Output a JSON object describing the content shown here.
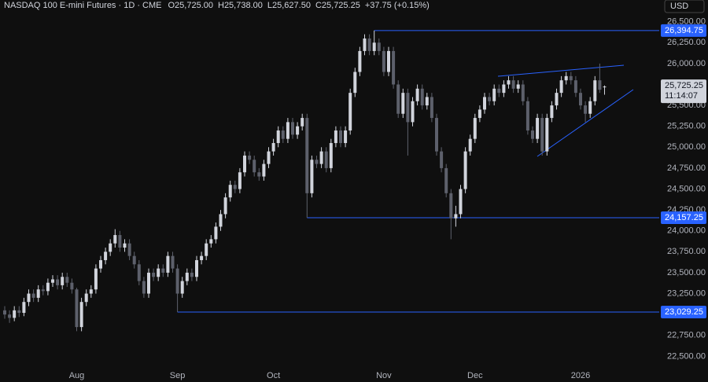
{
  "chart_data": {
    "type": "candlestick",
    "title": "NASDAQ 100 E-mini Futures · 1D · CME",
    "readout": [
      "O25,725.00",
      "H25,738.00",
      "L25,627.50",
      "C25,725.25",
      "+37.75 (+0.15%)"
    ],
    "currency": "USD",
    "up_color": "#d1d4dc",
    "down_color": "#5d606b",
    "level_color": "#2962ff",
    "categories": [
      null,
      null,
      null,
      null,
      null,
      null,
      null,
      null,
      null,
      null,
      null,
      null,
      null,
      null,
      null,
      "Aug",
      null,
      null,
      null,
      null,
      null,
      null,
      null,
      null,
      null,
      null,
      null,
      null,
      null,
      null,
      null,
      null,
      null,
      null,
      null,
      null,
      "Sep",
      null,
      null,
      null,
      null,
      null,
      null,
      null,
      null,
      null,
      null,
      null,
      null,
      null,
      null,
      null,
      null,
      null,
      null,
      null,
      "Oct",
      null,
      null,
      null,
      null,
      null,
      null,
      null,
      null,
      null,
      null,
      null,
      null,
      null,
      null,
      null,
      null,
      null,
      null,
      null,
      null,
      null,
      null,
      "Nov",
      null,
      null,
      null,
      null,
      null,
      null,
      null,
      null,
      null,
      null,
      null,
      null,
      null,
      null,
      null,
      null,
      null,
      null,
      "Dec",
      null,
      null,
      null,
      null,
      null,
      null,
      null,
      null,
      null,
      null,
      null,
      null,
      null,
      null,
      null,
      null,
      null,
      null,
      null,
      null,
      null,
      "2026",
      null,
      null,
      null,
      null,
      null
    ],
    "open": [
      23050,
      23000,
      22960,
      23050,
      23020,
      23150,
      23250,
      23200,
      23300,
      23280,
      23380,
      23420,
      23350,
      23450,
      23380,
      23300,
      22850,
      23150,
      23250,
      23300,
      23550,
      23650,
      23750,
      23850,
      23950,
      23800,
      23850,
      23700,
      23600,
      23400,
      23250,
      23500,
      23450,
      23550,
      23500,
      23700,
      23550,
      23250,
      23400,
      23500,
      23450,
      23650,
      23700,
      23850,
      23900,
      24050,
      24200,
      24400,
      24550,
      24500,
      24700,
      24900,
      24850,
      24700,
      24650,
      24800,
      24950,
      25050,
      25200,
      25100,
      25300,
      25150,
      25250,
      25350,
      24450,
      24850,
      24800,
      24950,
      24750,
      25050,
      25200,
      25050,
      25200,
      25650,
      25900,
      26150,
      26300,
      26150,
      26250,
      26150,
      25900,
      26150,
      25750,
      25400,
      25650,
      25300,
      25550,
      25700,
      25500,
      25600,
      25350,
      24950,
      24750,
      24450,
      24150,
      24200,
      24500,
      24950,
      25100,
      25350,
      25450,
      25600,
      25550,
      25700,
      25650,
      25750,
      25800,
      25700,
      25750,
      25550,
      25200,
      25100,
      25350,
      24950,
      25350,
      25500,
      25650,
      25800,
      25850,
      25800,
      25650,
      25500,
      25400,
      25550,
      25800,
      25725
    ],
    "high": [
      23100,
      23050,
      23100,
      23100,
      23200,
      23300,
      23300,
      23350,
      23350,
      23430,
      23470,
      23470,
      23500,
      23500,
      23430,
      23320,
      23200,
      23300,
      23350,
      23600,
      23700,
      23800,
      23900,
      24020,
      24000,
      23900,
      23900,
      23750,
      23650,
      23450,
      23550,
      23550,
      23600,
      23600,
      23750,
      23750,
      23600,
      23450,
      23550,
      23550,
      23700,
      23750,
      23900,
      23950,
      24100,
      24250,
      24450,
      24600,
      24600,
      24750,
      24950,
      24950,
      24900,
      24750,
      24850,
      25000,
      25100,
      25250,
      25250,
      25350,
      25350,
      25300,
      25400,
      25400,
      24900,
      24900,
      25000,
      25000,
      25100,
      25250,
      25250,
      25250,
      25700,
      25950,
      26200,
      26350,
      26350,
      26394.75,
      26300,
      26200,
      26200,
      26200,
      25800,
      25700,
      25700,
      25600,
      25750,
      25750,
      25650,
      25650,
      25400,
      25000,
      24800,
      24500,
      24300,
      24550,
      25000,
      25150,
      25400,
      25500,
      25650,
      25650,
      25750,
      25750,
      25800,
      25850,
      25850,
      25800,
      25800,
      25600,
      25250,
      25400,
      25400,
      25400,
      25550,
      25700,
      25850,
      25900,
      25900,
      25850,
      25700,
      25550,
      25600,
      25850,
      26000,
      25738
    ],
    "low": [
      22950,
      22900,
      22920,
      22970,
      22980,
      23100,
      23150,
      23150,
      23230,
      23230,
      23330,
      23300,
      23300,
      23330,
      23250,
      22800,
      22800,
      23100,
      23200,
      23250,
      23500,
      23600,
      23700,
      23800,
      23750,
      23750,
      23650,
      23550,
      23350,
      23200,
      23200,
      23400,
      23400,
      23450,
      23450,
      23500,
      23029.25,
      23200,
      23350,
      23400,
      23400,
      23600,
      23650,
      23800,
      23850,
      24000,
      24150,
      24350,
      24450,
      24450,
      24650,
      24800,
      24650,
      24600,
      24600,
      24750,
      24900,
      25000,
      25050,
      25050,
      25100,
      25100,
      25200,
      24157.25,
      24400,
      24750,
      24750,
      24700,
      24700,
      25000,
      25000,
      25000,
      25150,
      25600,
      25850,
      26100,
      26100,
      26100,
      26100,
      25850,
      25850,
      25700,
      25350,
      25350,
      24900,
      25250,
      25500,
      25450,
      25450,
      25300,
      24900,
      24700,
      24400,
      23900,
      24050,
      24150,
      24450,
      24900,
      25050,
      25300,
      25400,
      25500,
      25500,
      25600,
      25600,
      25700,
      25650,
      25650,
      25500,
      25150,
      25050,
      25050,
      24900,
      24900,
      25300,
      25450,
      25600,
      25750,
      25750,
      25600,
      25450,
      25300,
      25350,
      25500,
      25650,
      25627.5
    ],
    "close": [
      23000,
      22960,
      23050,
      23020,
      23150,
      23250,
      23200,
      23300,
      23280,
      23380,
      23420,
      23350,
      23450,
      23380,
      23300,
      22850,
      23150,
      23250,
      23300,
      23550,
      23650,
      23750,
      23850,
      23950,
      23800,
      23850,
      23700,
      23600,
      23400,
      23250,
      23500,
      23450,
      23550,
      23500,
      23700,
      23550,
      23250,
      23400,
      23500,
      23450,
      23650,
      23700,
      23850,
      23900,
      24050,
      24200,
      24400,
      24550,
      24500,
      24700,
      24900,
      24850,
      24700,
      24650,
      24800,
      24950,
      25050,
      25200,
      25100,
      25300,
      25150,
      25250,
      25350,
      24450,
      24850,
      24800,
      24950,
      24750,
      25050,
      25200,
      25050,
      25200,
      25650,
      25900,
      26150,
      26300,
      26150,
      26250,
      26150,
      25900,
      26150,
      25750,
      25400,
      25650,
      25300,
      25550,
      25700,
      25500,
      25600,
      25350,
      24950,
      24750,
      24450,
      24150,
      24200,
      24500,
      24950,
      25100,
      25350,
      25450,
      25600,
      25550,
      25700,
      25650,
      25750,
      25800,
      25700,
      25750,
      25550,
      25200,
      25100,
      25350,
      24950,
      25350,
      25500,
      25650,
      25800,
      25850,
      25800,
      25650,
      25500,
      25400,
      25550,
      25800,
      25687.5,
      25725.25
    ],
    "ylim": [
      22400,
      26760
    ],
    "yticks": [
      {
        "value": 22500,
        "label": "22,500.00"
      },
      {
        "value": 22750,
        "label": "22,750.00"
      },
      {
        "value": 23250,
        "label": "23,250.00"
      },
      {
        "value": 23500,
        "label": "23,500.00"
      },
      {
        "value": 23750,
        "label": "23,750.00"
      },
      {
        "value": 24000,
        "label": "24,000.00"
      },
      {
        "value": 24250,
        "label": "24,250.00"
      },
      {
        "value": 24500,
        "label": "24,500.00"
      },
      {
        "value": 24750,
        "label": "24,750.00"
      },
      {
        "value": 25000,
        "label": "25,000.00"
      },
      {
        "value": 25250,
        "label": "25,250.00"
      },
      {
        "value": 25500,
        "label": "25,500.00"
      },
      {
        "value": 26000,
        "label": "26,000.00"
      },
      {
        "value": 26250,
        "label": "26,250.00"
      },
      {
        "value": 26500,
        "label": "26,500.00"
      }
    ],
    "levels": [
      {
        "value": 26394.75,
        "label": "26,394.75"
      },
      {
        "value": 24157.25,
        "label": "24,157.25"
      },
      {
        "value": 23029.25,
        "label": "23,029.25"
      }
    ],
    "last_price": {
      "value": 25725.25,
      "label": "25,725.25"
    },
    "countdown": "11:14:07"
  }
}
